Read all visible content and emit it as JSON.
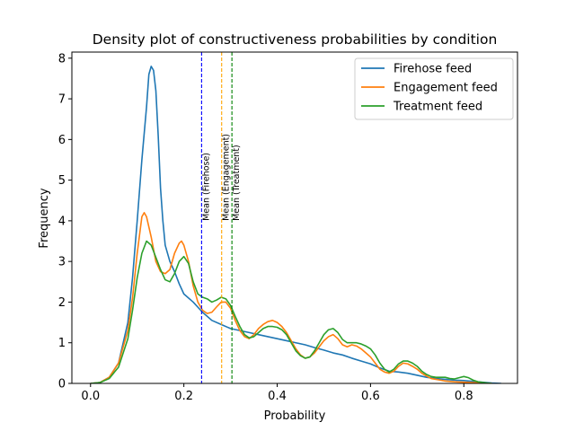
{
  "chart_data": {
    "type": "line",
    "title": "Density plot of constructiveness probabilities by condition",
    "xlabel": "Probability",
    "ylabel": "Frequency",
    "xlim": [
      -0.04,
      0.915
    ],
    "ylim": [
      0,
      8.15
    ],
    "xticks": [
      0.0,
      0.2,
      0.4,
      0.6,
      0.8
    ],
    "xtick_labels": [
      "0.0",
      "0.2",
      "0.4",
      "0.6",
      "0.8"
    ],
    "yticks": [
      0,
      1,
      2,
      3,
      4,
      5,
      6,
      7,
      8
    ],
    "ytick_labels": [
      "0",
      "1",
      "2",
      "3",
      "4",
      "5",
      "6",
      "7",
      "8"
    ],
    "grid": false,
    "legend_position": "upper right",
    "series": [
      {
        "name": "Firehose feed",
        "color": "#1f77b4",
        "points": [
          [
            0.0,
            0
          ],
          [
            0.02,
            0.02
          ],
          [
            0.04,
            0.15
          ],
          [
            0.06,
            0.5
          ],
          [
            0.08,
            1.5
          ],
          [
            0.09,
            2.6
          ],
          [
            0.1,
            4.0
          ],
          [
            0.11,
            5.5
          ],
          [
            0.12,
            6.8
          ],
          [
            0.125,
            7.6
          ],
          [
            0.13,
            7.8
          ],
          [
            0.135,
            7.7
          ],
          [
            0.14,
            7.2
          ],
          [
            0.145,
            6.1
          ],
          [
            0.15,
            4.8
          ],
          [
            0.155,
            4.0
          ],
          [
            0.16,
            3.4
          ],
          [
            0.17,
            3.0
          ],
          [
            0.18,
            2.75
          ],
          [
            0.19,
            2.45
          ],
          [
            0.2,
            2.2
          ],
          [
            0.22,
            2.0
          ],
          [
            0.24,
            1.75
          ],
          [
            0.26,
            1.55
          ],
          [
            0.28,
            1.45
          ],
          [
            0.3,
            1.35
          ],
          [
            0.32,
            1.3
          ],
          [
            0.34,
            1.25
          ],
          [
            0.36,
            1.2
          ],
          [
            0.38,
            1.15
          ],
          [
            0.4,
            1.1
          ],
          [
            0.42,
            1.05
          ],
          [
            0.44,
            1.0
          ],
          [
            0.46,
            0.95
          ],
          [
            0.48,
            0.88
          ],
          [
            0.5,
            0.82
          ],
          [
            0.52,
            0.75
          ],
          [
            0.54,
            0.7
          ],
          [
            0.56,
            0.62
          ],
          [
            0.58,
            0.55
          ],
          [
            0.6,
            0.48
          ],
          [
            0.62,
            0.38
          ],
          [
            0.64,
            0.3
          ],
          [
            0.66,
            0.28
          ],
          [
            0.68,
            0.25
          ],
          [
            0.7,
            0.2
          ],
          [
            0.72,
            0.15
          ],
          [
            0.74,
            0.12
          ],
          [
            0.76,
            0.1
          ],
          [
            0.78,
            0.08
          ],
          [
            0.8,
            0.07
          ],
          [
            0.82,
            0.05
          ],
          [
            0.84,
            0.03
          ],
          [
            0.86,
            0.01
          ],
          [
            0.88,
            0
          ]
        ]
      },
      {
        "name": "Engagement feed",
        "color": "#ff7f0e",
        "points": [
          [
            0.0,
            0
          ],
          [
            0.02,
            0.02
          ],
          [
            0.04,
            0.15
          ],
          [
            0.06,
            0.5
          ],
          [
            0.08,
            1.3
          ],
          [
            0.09,
            2.1
          ],
          [
            0.1,
            3.2
          ],
          [
            0.11,
            4.1
          ],
          [
            0.115,
            4.2
          ],
          [
            0.12,
            4.1
          ],
          [
            0.13,
            3.6
          ],
          [
            0.14,
            3.0
          ],
          [
            0.15,
            2.75
          ],
          [
            0.16,
            2.7
          ],
          [
            0.17,
            2.8
          ],
          [
            0.18,
            3.2
          ],
          [
            0.19,
            3.45
          ],
          [
            0.195,
            3.5
          ],
          [
            0.2,
            3.4
          ],
          [
            0.21,
            3.0
          ],
          [
            0.22,
            2.4
          ],
          [
            0.23,
            2.0
          ],
          [
            0.24,
            1.8
          ],
          [
            0.25,
            1.72
          ],
          [
            0.26,
            1.75
          ],
          [
            0.27,
            1.88
          ],
          [
            0.28,
            2.0
          ],
          [
            0.29,
            2.0
          ],
          [
            0.3,
            1.85
          ],
          [
            0.31,
            1.55
          ],
          [
            0.32,
            1.3
          ],
          [
            0.33,
            1.15
          ],
          [
            0.34,
            1.1
          ],
          [
            0.35,
            1.2
          ],
          [
            0.36,
            1.35
          ],
          [
            0.37,
            1.45
          ],
          [
            0.38,
            1.52
          ],
          [
            0.39,
            1.55
          ],
          [
            0.4,
            1.5
          ],
          [
            0.41,
            1.4
          ],
          [
            0.42,
            1.25
          ],
          [
            0.43,
            1.05
          ],
          [
            0.44,
            0.85
          ],
          [
            0.45,
            0.7
          ],
          [
            0.46,
            0.62
          ],
          [
            0.47,
            0.65
          ],
          [
            0.48,
            0.75
          ],
          [
            0.49,
            0.9
          ],
          [
            0.5,
            1.05
          ],
          [
            0.51,
            1.15
          ],
          [
            0.52,
            1.2
          ],
          [
            0.53,
            1.1
          ],
          [
            0.54,
            0.95
          ],
          [
            0.55,
            0.9
          ],
          [
            0.56,
            0.95
          ],
          [
            0.57,
            0.92
          ],
          [
            0.58,
            0.85
          ],
          [
            0.59,
            0.75
          ],
          [
            0.6,
            0.65
          ],
          [
            0.61,
            0.5
          ],
          [
            0.62,
            0.35
          ],
          [
            0.63,
            0.28
          ],
          [
            0.64,
            0.25
          ],
          [
            0.65,
            0.3
          ],
          [
            0.66,
            0.42
          ],
          [
            0.67,
            0.5
          ],
          [
            0.68,
            0.48
          ],
          [
            0.69,
            0.42
          ],
          [
            0.7,
            0.35
          ],
          [
            0.71,
            0.25
          ],
          [
            0.72,
            0.18
          ],
          [
            0.73,
            0.12
          ],
          [
            0.74,
            0.1
          ],
          [
            0.75,
            0.08
          ],
          [
            0.76,
            0.06
          ],
          [
            0.78,
            0.04
          ],
          [
            0.8,
            0.03
          ],
          [
            0.82,
            0.02
          ],
          [
            0.84,
            0.01
          ],
          [
            0.86,
            0
          ]
        ]
      },
      {
        "name": "Treatment feed",
        "color": "#2ca02c",
        "points": [
          [
            0.0,
            0
          ],
          [
            0.02,
            0.02
          ],
          [
            0.04,
            0.12
          ],
          [
            0.06,
            0.4
          ],
          [
            0.08,
            1.1
          ],
          [
            0.09,
            1.8
          ],
          [
            0.1,
            2.6
          ],
          [
            0.11,
            3.2
          ],
          [
            0.12,
            3.5
          ],
          [
            0.13,
            3.4
          ],
          [
            0.14,
            3.1
          ],
          [
            0.15,
            2.8
          ],
          [
            0.16,
            2.55
          ],
          [
            0.17,
            2.5
          ],
          [
            0.18,
            2.7
          ],
          [
            0.19,
            3.0
          ],
          [
            0.2,
            3.12
          ],
          [
            0.21,
            2.95
          ],
          [
            0.22,
            2.5
          ],
          [
            0.23,
            2.2
          ],
          [
            0.24,
            2.12
          ],
          [
            0.25,
            2.08
          ],
          [
            0.26,
            2.0
          ],
          [
            0.27,
            2.05
          ],
          [
            0.28,
            2.12
          ],
          [
            0.29,
            2.08
          ],
          [
            0.3,
            1.92
          ],
          [
            0.31,
            1.65
          ],
          [
            0.32,
            1.4
          ],
          [
            0.33,
            1.2
          ],
          [
            0.34,
            1.12
          ],
          [
            0.35,
            1.15
          ],
          [
            0.36,
            1.25
          ],
          [
            0.37,
            1.35
          ],
          [
            0.38,
            1.4
          ],
          [
            0.39,
            1.4
          ],
          [
            0.4,
            1.38
          ],
          [
            0.41,
            1.32
          ],
          [
            0.42,
            1.2
          ],
          [
            0.43,
            1.0
          ],
          [
            0.44,
            0.8
          ],
          [
            0.45,
            0.68
          ],
          [
            0.46,
            0.62
          ],
          [
            0.47,
            0.65
          ],
          [
            0.48,
            0.8
          ],
          [
            0.49,
            1.0
          ],
          [
            0.5,
            1.2
          ],
          [
            0.51,
            1.32
          ],
          [
            0.52,
            1.35
          ],
          [
            0.53,
            1.25
          ],
          [
            0.54,
            1.08
          ],
          [
            0.55,
            1.0
          ],
          [
            0.56,
            1.0
          ],
          [
            0.57,
            1.0
          ],
          [
            0.58,
            0.97
          ],
          [
            0.59,
            0.92
          ],
          [
            0.6,
            0.85
          ],
          [
            0.61,
            0.7
          ],
          [
            0.62,
            0.5
          ],
          [
            0.63,
            0.35
          ],
          [
            0.64,
            0.28
          ],
          [
            0.65,
            0.35
          ],
          [
            0.66,
            0.48
          ],
          [
            0.67,
            0.55
          ],
          [
            0.68,
            0.55
          ],
          [
            0.69,
            0.5
          ],
          [
            0.7,
            0.42
          ],
          [
            0.71,
            0.3
          ],
          [
            0.72,
            0.22
          ],
          [
            0.73,
            0.17
          ],
          [
            0.74,
            0.15
          ],
          [
            0.75,
            0.15
          ],
          [
            0.76,
            0.15
          ],
          [
            0.77,
            0.12
          ],
          [
            0.78,
            0.11
          ],
          [
            0.79,
            0.14
          ],
          [
            0.8,
            0.17
          ],
          [
            0.81,
            0.14
          ],
          [
            0.82,
            0.08
          ],
          [
            0.83,
            0.04
          ],
          [
            0.85,
            0.01
          ],
          [
            0.86,
            0
          ]
        ]
      }
    ],
    "mean_lines": [
      {
        "label": "Mean (Firehose)",
        "x": 0.238,
        "color": "#0000ff"
      },
      {
        "label": "Mean (Engagement)",
        "x": 0.281,
        "color": "#ffa500"
      },
      {
        "label": "Mean (Treatment)",
        "x": 0.303,
        "color": "#008000"
      }
    ]
  }
}
